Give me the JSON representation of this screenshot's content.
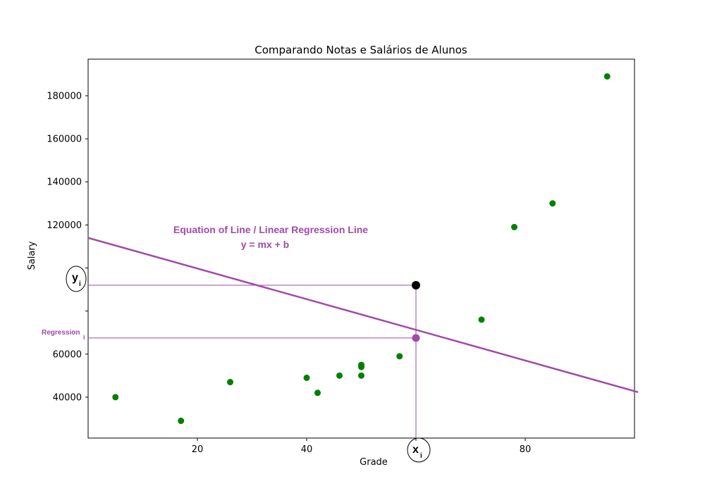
{
  "chart_data": {
    "type": "scatter",
    "title": "Comparando Notas e Salários de Alunos",
    "xlabel": "Grade",
    "ylabel": "Salary",
    "xlim": [
      0,
      100
    ],
    "ylim": [
      21000,
      197000
    ],
    "x_ticks": [
      20,
      40,
      60,
      80
    ],
    "x_tick_labels": [
      "20",
      "40",
      "",
      "80"
    ],
    "y_ticks": [
      40000,
      60000,
      80000,
      100000,
      120000,
      140000,
      160000,
      180000
    ],
    "y_tick_labels": [
      "40000",
      "60000",
      "",
      "",
      "120000",
      "140000",
      "160000",
      "180000"
    ],
    "grid": false,
    "series": [
      {
        "color": "#008000",
        "points": [
          {
            "x": 5,
            "y": 40000
          },
          {
            "x": 17,
            "y": 29000
          },
          {
            "x": 26,
            "y": 47000
          },
          {
            "x": 40,
            "y": 49000
          },
          {
            "x": 42,
            "y": 42000
          },
          {
            "x": 46,
            "y": 50000
          },
          {
            "x": 50,
            "y": 55000
          },
          {
            "x": 50,
            "y": 54000
          },
          {
            "x": 50,
            "y": 50000
          },
          {
            "x": 57,
            "y": 59000
          },
          {
            "x": 72,
            "y": 76000
          },
          {
            "x": 78,
            "y": 119000
          },
          {
            "x": 85,
            "y": 130000
          },
          {
            "x": 95,
            "y": 189000
          }
        ]
      }
    ],
    "highlighted_point": {
      "x": 60,
      "y": 92000,
      "color": "#000000"
    },
    "regression_point": {
      "x": 60,
      "y": 67500,
      "color": "#a04aa8"
    },
    "regression_line": {
      "x_start": 0,
      "y_start": 114000,
      "x_end": 100,
      "y_end": 42000,
      "color": "#a04aa8"
    },
    "annotations": {
      "equation_title": "Equation of Line / Linear Regression Line",
      "equation_formula": "y = mx + b",
      "y_marker": "y",
      "y_marker_sub": "i",
      "x_marker": "x",
      "x_marker_sub": "i",
      "regression_marker": "Regression",
      "regression_marker_sub": "i",
      "accent_color": "#a04aa8"
    }
  }
}
